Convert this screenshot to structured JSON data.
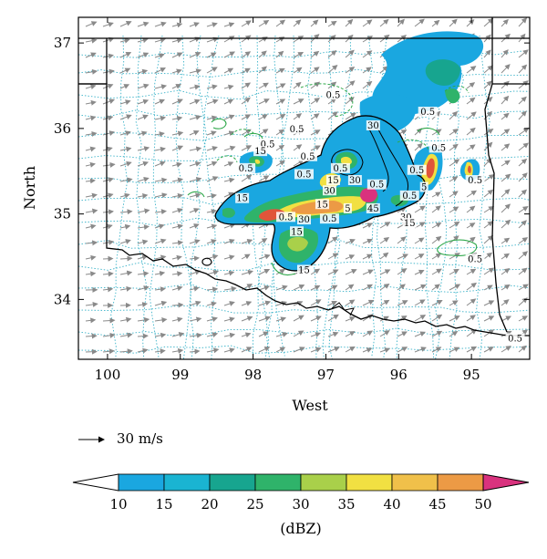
{
  "chart_data": {
    "type": "heatmap",
    "map": "Radar reflectivity with wind vectors over Oklahoma",
    "axes": {
      "xlabel": "West",
      "ylabel": "North",
      "xlim": [
        100.4,
        94.2
      ],
      "ylim": [
        33.3,
        37.3
      ],
      "xticks": [
        "100",
        "99",
        "98",
        "97",
        "96",
        "95"
      ],
      "yticks": [
        "37",
        "36",
        "35",
        "34"
      ]
    },
    "vector_legend": {
      "label": "30 m/s"
    },
    "colorbar": {
      "unit": "(dBZ)",
      "ticks": [
        "10",
        "15",
        "20",
        "25",
        "30",
        "35",
        "40",
        "45",
        "50"
      ],
      "colors": [
        "#1aa7e0",
        "#1ab4d2",
        "#17a58f",
        "#2fb36a",
        "#a9d04a",
        "#f1e042",
        "#f0c04a",
        "#ec9a45",
        "#e0553a",
        "#d9327e"
      ]
    },
    "contour_labels": [
      {
        "text": "0.5",
        "lon": 96.9,
        "lat": 36.38
      },
      {
        "text": "0.5",
        "lon": 95.6,
        "lat": 36.18
      },
      {
        "text": "0.5",
        "lon": 97.4,
        "lat": 35.98
      },
      {
        "text": "30",
        "lon": 96.35,
        "lat": 36.02
      },
      {
        "text": "0.5",
        "lon": 97.8,
        "lat": 35.8
      },
      {
        "text": "15",
        "lon": 97.9,
        "lat": 35.72
      },
      {
        "text": "0.5",
        "lon": 97.25,
        "lat": 35.66
      },
      {
        "text": "0.5",
        "lon": 95.45,
        "lat": 35.76
      },
      {
        "text": "0.5",
        "lon": 98.1,
        "lat": 35.52
      },
      {
        "text": "0.5",
        "lon": 96.8,
        "lat": 35.52
      },
      {
        "text": "0.5",
        "lon": 97.3,
        "lat": 35.45
      },
      {
        "text": "30",
        "lon": 96.6,
        "lat": 35.38
      },
      {
        "text": "0.5",
        "lon": 95.75,
        "lat": 35.5
      },
      {
        "text": "15",
        "lon": 96.9,
        "lat": 35.38
      },
      {
        "text": "0.5",
        "lon": 94.95,
        "lat": 35.38
      },
      {
        "text": "30",
        "lon": 96.95,
        "lat": 35.26
      },
      {
        "text": "0.5",
        "lon": 96.3,
        "lat": 35.33
      },
      {
        "text": "5",
        "lon": 95.65,
        "lat": 35.3
      },
      {
        "text": "15",
        "lon": 98.15,
        "lat": 35.17
      },
      {
        "text": "15",
        "lon": 97.05,
        "lat": 35.1
      },
      {
        "text": "0.5",
        "lon": 95.85,
        "lat": 35.2
      },
      {
        "text": "45",
        "lon": 96.35,
        "lat": 35.05
      },
      {
        "text": "5",
        "lon": 96.7,
        "lat": 35.05
      },
      {
        "text": "0.5",
        "lon": 97.55,
        "lat": 34.95
      },
      {
        "text": "30",
        "lon": 97.3,
        "lat": 34.92
      },
      {
        "text": "0.5",
        "lon": 96.95,
        "lat": 34.93
      },
      {
        "text": "30",
        "lon": 95.9,
        "lat": 34.95
      },
      {
        "text": "15",
        "lon": 95.85,
        "lat": 34.88
      },
      {
        "text": "15",
        "lon": 97.4,
        "lat": 34.78
      },
      {
        "text": "0.5",
        "lon": 94.95,
        "lat": 34.46
      },
      {
        "text": "15",
        "lon": 97.3,
        "lat": 34.33
      },
      {
        "text": "0.5",
        "lon": 94.4,
        "lat": 33.53
      }
    ]
  }
}
